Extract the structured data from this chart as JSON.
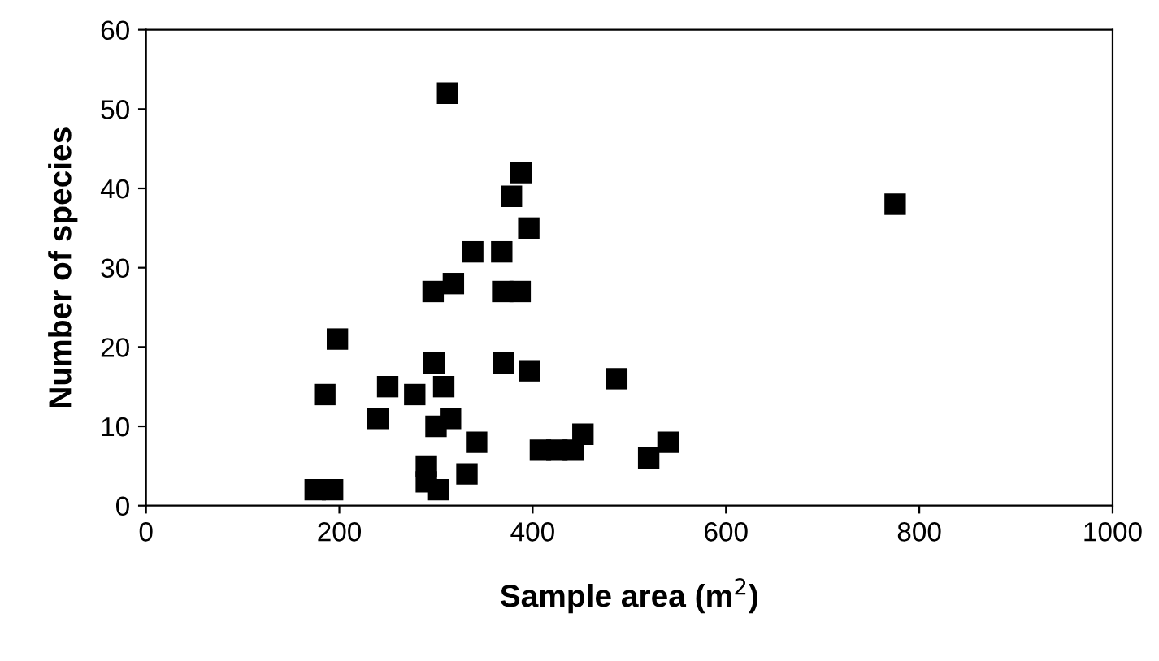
{
  "chart_data": {
    "type": "scatter",
    "xlabel": "Sample area (m$^{2}$)",
    "ylabel": "Number of species",
    "x": [
      175,
      193,
      185,
      198,
      240,
      250,
      278,
      290,
      290,
      298,
      297,
      300,
      302,
      308,
      315,
      318,
      312,
      332,
      338,
      342,
      368,
      370,
      369,
      378,
      387,
      388,
      396,
      397,
      408,
      425,
      442,
      452,
      487,
      520,
      540,
      775
    ],
    "series": [
      {
        "color": "#000000",
        "values": [
          2,
          2,
          14,
          21,
          11,
          15,
          14,
          5,
          3,
          18,
          27,
          10,
          2,
          15,
          11,
          28,
          52,
          4,
          32,
          8,
          32,
          18,
          27,
          39,
          27,
          42,
          35,
          17,
          7,
          7,
          7,
          9,
          16,
          6,
          8,
          38
        ]
      }
    ],
    "xlim": [
      0,
      1000
    ],
    "xticks": [
      0,
      200,
      400,
      600,
      800,
      1000
    ],
    "ylim": [
      0,
      60
    ],
    "yticks": [
      0,
      10,
      20,
      30,
      40,
      50,
      60
    ],
    "marker": "square",
    "grid": false
  }
}
